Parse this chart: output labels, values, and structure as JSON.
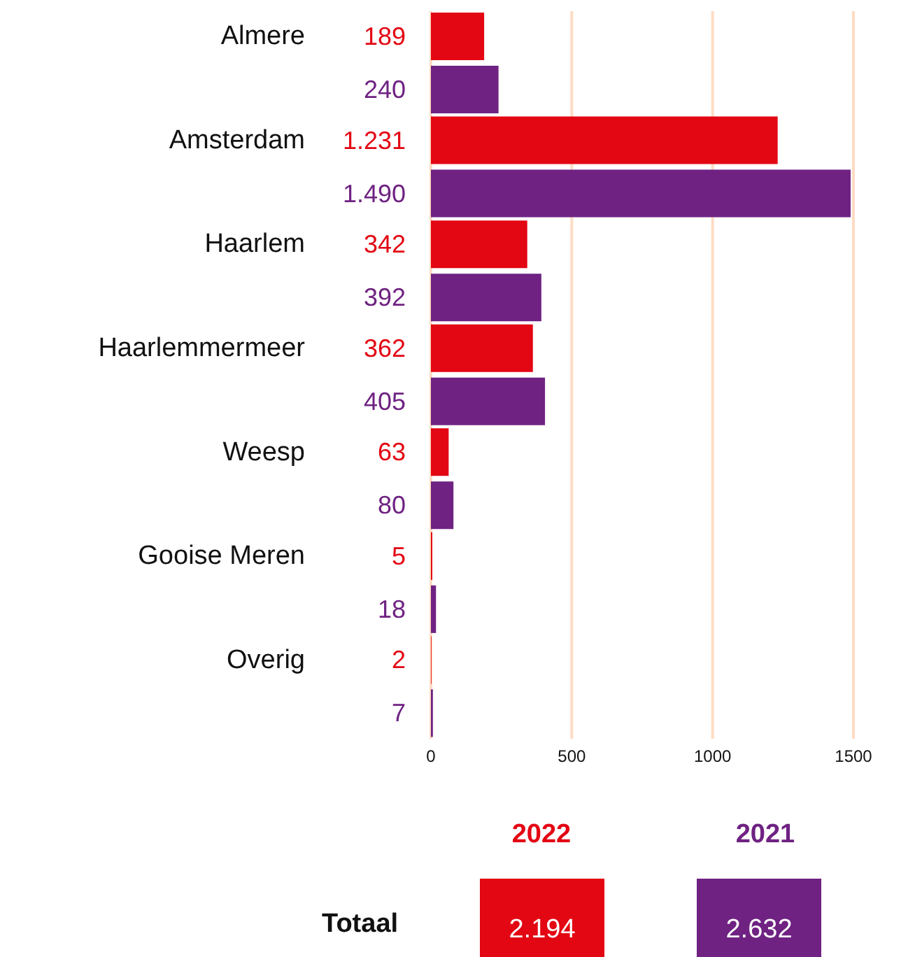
{
  "chart_data": {
    "type": "bar",
    "orientation": "horizontal",
    "categories": [
      "Almere",
      "Amsterdam",
      "Haarlem",
      "Haarlemmermeer",
      "Weesp",
      "Gooise Meren",
      "Overig"
    ],
    "series": [
      {
        "name": "2022",
        "color": "#e30613",
        "values": [
          189,
          1231,
          342,
          362,
          63,
          5,
          2
        ],
        "value_labels": [
          "189",
          "1.231",
          "342",
          "362",
          "63",
          "5",
          "2"
        ]
      },
      {
        "name": "2021",
        "color": "#6f2282",
        "values": [
          240,
          1490,
          392,
          405,
          80,
          18,
          7
        ],
        "value_labels": [
          "240",
          "1.490",
          "392",
          "405",
          "80",
          "18",
          "7"
        ]
      }
    ],
    "xlim": [
      0,
      1500
    ],
    "xticks": [
      0,
      500,
      1000,
      1500
    ],
    "grid": "x",
    "legend": "bottom",
    "annotations": [
      "Totaal",
      "2.194",
      "2.632"
    ]
  }
}
